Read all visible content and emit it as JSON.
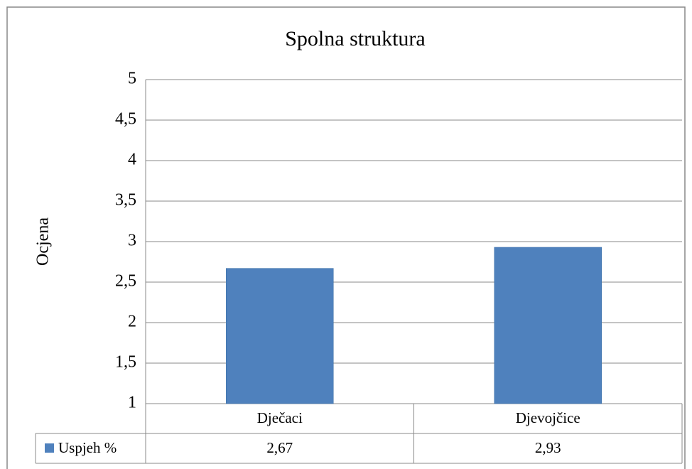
{
  "chart_data": {
    "type": "bar",
    "title": "Spolna struktura",
    "y_label": "Ocjena",
    "categories": [
      "Dječaci",
      "Djevojčice"
    ],
    "series": [
      {
        "name": "Uspjeh %",
        "color": "#4f81bd",
        "values": [
          2.67,
          2.93
        ],
        "value_labels": [
          "2,67",
          "2,93"
        ]
      }
    ],
    "ylim": [
      1,
      5
    ],
    "yticks": [
      1,
      {
        "value": 1.5,
        "label": "1,5"
      },
      2,
      {
        "value": 2.5,
        "label": "2,5"
      },
      3,
      {
        "value": 3.5,
        "label": "3,5"
      },
      4,
      {
        "value": 4.5,
        "label": "4,5"
      },
      5
    ],
    "grid": true,
    "legend": "data-table"
  }
}
